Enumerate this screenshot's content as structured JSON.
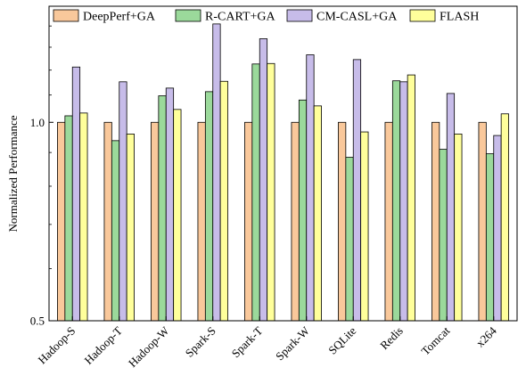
{
  "chart_data": {
    "type": "bar",
    "title": "",
    "xlabel": "",
    "ylabel": "Normalized Performance",
    "ylim": [
      0.5,
      1.5
    ],
    "y_scale": "log",
    "yticks": [
      0.5,
      1.0
    ],
    "ytick_labels": [
      "0.5",
      "1.0"
    ],
    "grid": false,
    "legend_position": "top",
    "categories": [
      "Hadoop-S",
      "Hadoop-T",
      "Hadoop-W",
      "Spark-S",
      "Spark-T",
      "Spark-W",
      "SQLite",
      "Redis",
      "Tomcat",
      "x264"
    ],
    "series": [
      {
        "name": "DeepPerf+GA",
        "color": "#f9c89b",
        "values": [
          1.0,
          1.0,
          1.0,
          1.0,
          1.0,
          1.0,
          1.0,
          1.0,
          1.0,
          1.0
        ]
      },
      {
        "name": "R-CART+GA",
        "color": "#9bd99b",
        "values": [
          1.023,
          0.938,
          1.097,
          1.113,
          1.226,
          1.081,
          0.885,
          1.156,
          0.91,
          0.896
        ]
      },
      {
        "name": "CM-CASL+GA",
        "color": "#c7bce9",
        "values": [
          1.213,
          1.152,
          1.127,
          1.41,
          1.339,
          1.266,
          1.245,
          1.152,
          1.106,
          0.955
        ]
      },
      {
        "name": "FLASH",
        "color": "#ffff9b",
        "values": [
          1.033,
          0.96,
          1.046,
          1.154,
          1.228,
          1.059,
          0.967,
          1.18,
          0.96,
          1.03
        ]
      }
    ]
  }
}
